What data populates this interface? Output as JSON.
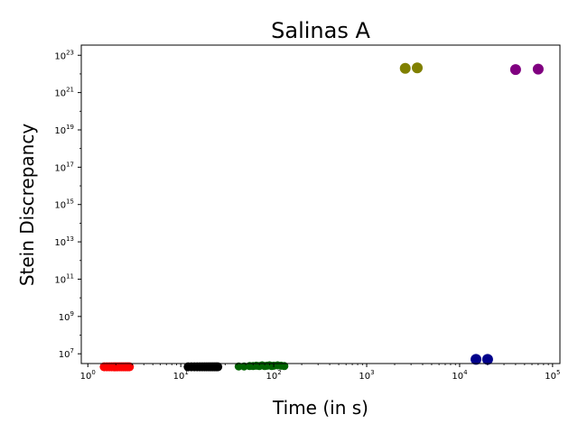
{
  "chart_data": {
    "type": "scatter",
    "title": "Salinas A",
    "xlabel": "Time (in s)",
    "ylabel": "Stein Discrepancy",
    "xscale": "log",
    "yscale": "log",
    "xlim": [
      0.85,
      120000
    ],
    "ylim": [
      3000000,
      3.5e+23
    ],
    "x_ticks": [
      {
        "value": 1,
        "base": "10",
        "exp": "0"
      },
      {
        "value": 10,
        "base": "10",
        "exp": "1"
      },
      {
        "value": 100,
        "base": "10",
        "exp": "2"
      },
      {
        "value": 1000,
        "base": "10",
        "exp": "3"
      },
      {
        "value": 10000,
        "base": "10",
        "exp": "4"
      },
      {
        "value": 100000,
        "base": "10",
        "exp": "5"
      }
    ],
    "y_ticks": [
      {
        "value": 10000000.0,
        "base": "10",
        "exp": "7"
      },
      {
        "value": 1000000000.0,
        "base": "10",
        "exp": "9"
      },
      {
        "value": 100000000000.0,
        "base": "10",
        "exp": "11"
      },
      {
        "value": 10000000000000.0,
        "base": "10",
        "exp": "13"
      },
      {
        "value": 1000000000000000.0,
        "base": "10",
        "exp": "15"
      },
      {
        "value": 1e+17,
        "base": "10",
        "exp": "17"
      },
      {
        "value": 1e+19,
        "base": "10",
        "exp": "19"
      },
      {
        "value": 1e+21,
        "base": "10",
        "exp": "21"
      },
      {
        "value": 1e+23,
        "base": "10",
        "exp": "23"
      }
    ],
    "grid": false,
    "series": [
      {
        "color": "#ff0000",
        "marker_size": 10,
        "x": [
          1.5,
          1.6,
          1.7,
          1.8,
          1.9,
          2.0,
          2.1,
          2.2,
          2.3,
          2.4,
          2.5,
          2.6,
          2.7,
          2.8
        ],
        "y": [
          2000000,
          2000000,
          2000000,
          2000000,
          2000000,
          2000000,
          2000000,
          2000000,
          2000000,
          2000000,
          2000000,
          2000000,
          2000000,
          2000000
        ]
      },
      {
        "color": "#000000",
        "marker_size": 10,
        "x": [
          12,
          13,
          14,
          15,
          16,
          17,
          18,
          19,
          20,
          21,
          22,
          23,
          24,
          25
        ],
        "y": [
          2000000,
          2000000,
          2000000,
          2000000,
          2000000,
          2000000,
          2000000,
          2000000,
          2000000,
          2000000,
          2000000,
          2000000,
          2000000,
          2000000
        ]
      },
      {
        "color": "#006400",
        "marker_size": 9,
        "x": [
          42,
          48,
          55,
          60,
          65,
          70,
          75,
          80,
          85,
          90,
          95,
          100,
          110,
          120,
          130
        ],
        "y": [
          2100000,
          2100000,
          2200000,
          2200000,
          2300000,
          2200000,
          2400000,
          2200000,
          2300000,
          2400000,
          2200000,
          2300000,
          2400000,
          2300000,
          2200000
        ]
      },
      {
        "color": "#00008b",
        "marker_size": 12,
        "x": [
          15000,
          20000
        ],
        "y": [
          5000000,
          5000000
        ]
      },
      {
        "color": "#808000",
        "marker_size": 12,
        "x": [
          2600,
          3500
        ],
        "y": [
          2e+22,
          2.1e+22
        ]
      },
      {
        "color": "#800080",
        "marker_size": 12,
        "x": [
          40000,
          70000
        ],
        "y": [
          1.7e+22,
          1.8e+22
        ]
      }
    ]
  }
}
